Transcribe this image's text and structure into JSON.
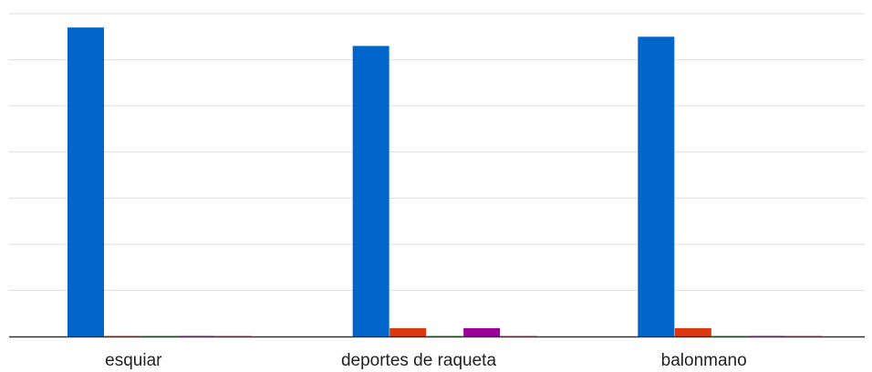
{
  "chart_data": {
    "type": "bar",
    "title": "",
    "xlabel": "",
    "ylabel": "",
    "categories": [
      "esquiar",
      "deportes de raqueta",
      "balonmano"
    ],
    "series": [
      {
        "color": "#0066cc",
        "values": [
          67,
          63,
          65
        ]
      },
      {
        "color": "#dc3912",
        "values": [
          0,
          1.8,
          1.8
        ]
      },
      {
        "color": "#109618",
        "values": [
          0,
          0,
          0
        ]
      },
      {
        "color": "#990099",
        "values": [
          0,
          1.8,
          0
        ]
      },
      {
        "color": "#dd4477",
        "values": [
          0,
          0,
          0
        ]
      }
    ],
    "ylim": [
      0,
      70
    ],
    "grid": true,
    "gridline_step": 10,
    "legend": "none",
    "colors": {
      "axis": "#333333",
      "grid": "#dddddd",
      "label": "#222222"
    }
  }
}
